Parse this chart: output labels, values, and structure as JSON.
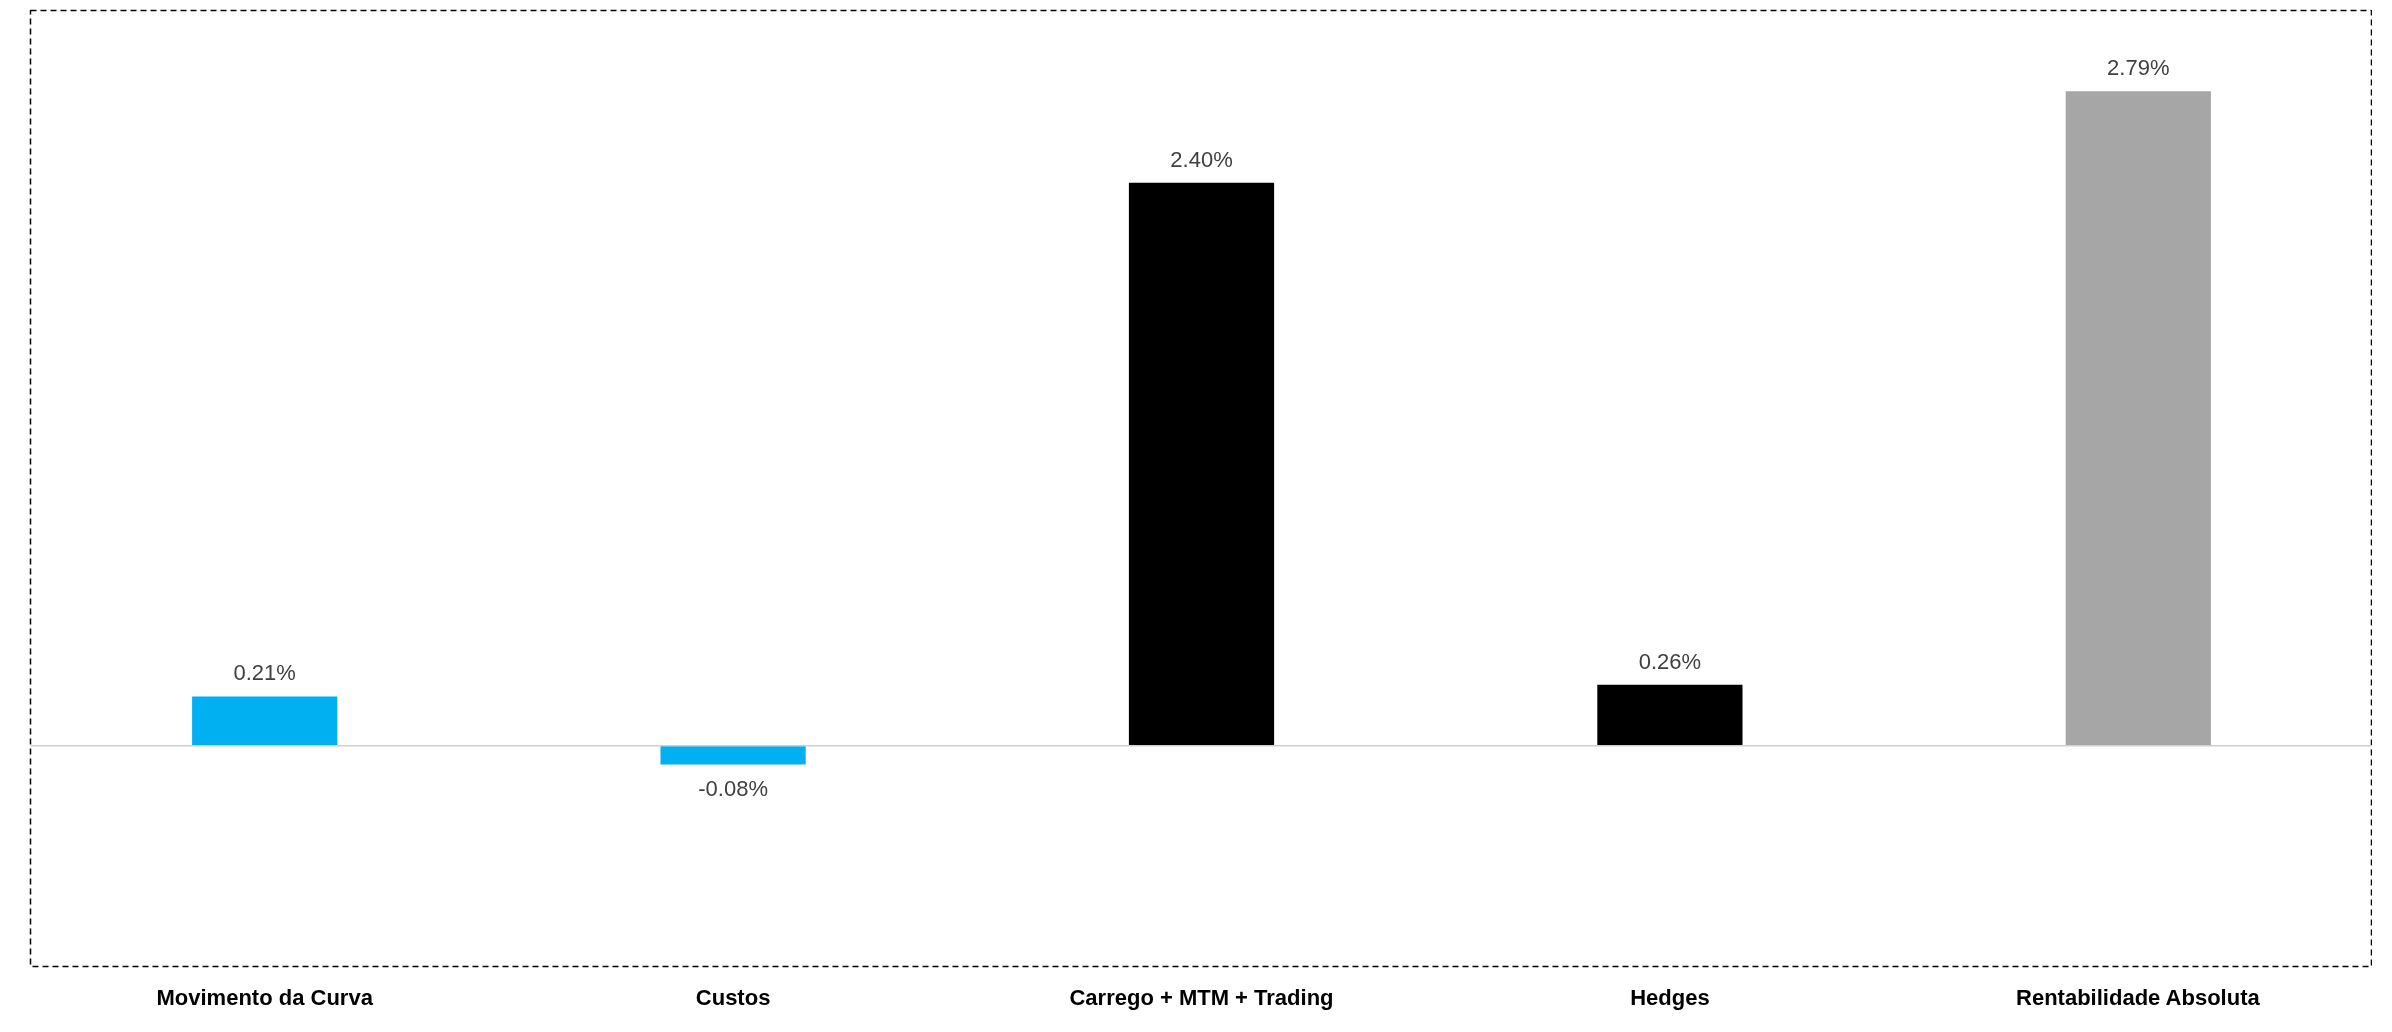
{
  "chart_data": {
    "type": "bar",
    "categories": [
      "Movimento da Curva",
      "Custos",
      "Carrego + MTM + Trading",
      "Hedges",
      "Rentabilidade Absoluta"
    ],
    "values": [
      0.21,
      -0.08,
      2.4,
      0.26,
      2.79
    ],
    "colors": [
      "#00b0f0",
      "#00b0f0",
      "#000000",
      "#000000",
      "#a6a6a6"
    ],
    "value_labels": [
      "0.21%",
      "-0.08%",
      "2.40%",
      "0.26%",
      "2.79%"
    ],
    "grid": false
  }
}
